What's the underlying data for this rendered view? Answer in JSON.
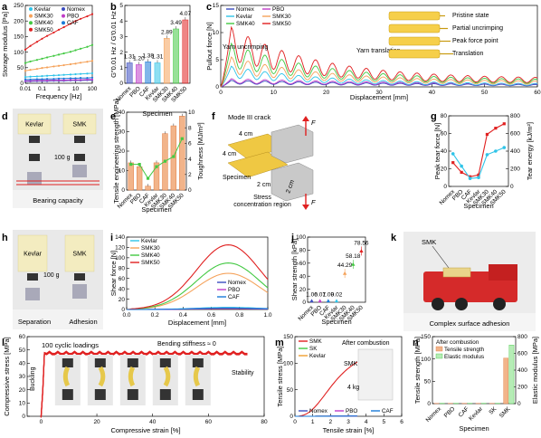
{
  "panel_letters": [
    "a",
    "b",
    "c",
    "d",
    "e",
    "f",
    "g",
    "h",
    "i",
    "j",
    "k",
    "l",
    "m",
    "n"
  ],
  "colors": {
    "kevlar": "#2fc4e8",
    "smk30": "#f5a25a",
    "smk40": "#43c943",
    "smk50": "#e02020",
    "nomex": "#3b4cc0",
    "pbo": "#c03cc8",
    "caf": "#1a7ad8",
    "sk": "#f0a030",
    "bar_orange": "#f2b48a",
    "bar_orange_dark": "#e07a40"
  },
  "chart_data": [
    {
      "id": "a",
      "type": "line",
      "xlabel": "Frequency [Hz]",
      "ylabel": "Storage modulus [Pa]",
      "x_scale": "log",
      "xlim": [
        0.01,
        100
      ],
      "ylim": [
        0,
        250
      ],
      "xticks": [
        "0.01",
        "0.1",
        "1",
        "10",
        "100"
      ],
      "yticks": [
        "0",
        "50",
        "100",
        "150",
        "200",
        "250"
      ],
      "x": [
        0.01,
        0.02,
        0.05,
        0.1,
        0.2,
        0.5,
        1,
        2,
        5,
        10,
        20,
        50,
        100
      ],
      "series": [
        {
          "name": "Kevlar",
          "color": "#2fc4e8",
          "values": [
            20,
            21,
            22,
            23,
            24,
            25,
            26,
            27,
            28,
            29,
            30,
            31,
            32
          ]
        },
        {
          "name": "Nomex",
          "color": "#3b4cc0",
          "values": [
            6,
            6,
            7,
            7,
            7,
            8,
            8,
            8,
            9,
            9,
            9,
            10,
            10
          ]
        },
        {
          "name": "SMK30",
          "color": "#f5a25a",
          "values": [
            40,
            43,
            46,
            49,
            51,
            54,
            56,
            58,
            61,
            63,
            66,
            69,
            72
          ]
        },
        {
          "name": "PBO",
          "color": "#c03cc8",
          "values": [
            8,
            8,
            9,
            9,
            9,
            10,
            10,
            10,
            11,
            11,
            11,
            12,
            12
          ]
        },
        {
          "name": "SMK40",
          "color": "#43c943",
          "values": [
            65,
            70,
            75,
            79,
            83,
            88,
            92,
            96,
            101,
            106,
            111,
            117,
            123
          ]
        },
        {
          "name": "CAF",
          "color": "#1a7ad8",
          "values": [
            12,
            12,
            13,
            13,
            14,
            14,
            15,
            15,
            16,
            16,
            17,
            17,
            18
          ]
        },
        {
          "name": "SMK50",
          "color": "#e02020",
          "values": [
            108,
            120,
            133,
            143,
            152,
            163,
            172,
            180,
            191,
            200,
            207,
            215,
            222
          ]
        }
      ]
    },
    {
      "id": "b",
      "type": "bar",
      "xlabel": "Specimen",
      "ylabel": "G″0.01 Hz / G′0.01 Hz",
      "ylim": [
        0,
        5
      ],
      "yticks": [
        "0",
        "1",
        "2",
        "3",
        "4",
        "5"
      ],
      "categories": [
        "Nomex",
        "PBO",
        "CAF",
        "Kevlar",
        "SMK30",
        "SMK40",
        "SMK50"
      ],
      "values": [
        1.31,
        1.2,
        1.38,
        1.31,
        2.89,
        3.49,
        4.07
      ],
      "value_labels": [
        "1.31",
        "1.20",
        "1.38",
        "1.31",
        "2.89",
        "3.49",
        "4.07"
      ],
      "label_colors": [
        "#3b4cc0",
        "#c03cc8",
        "#1a7ad8",
        "#2fc4e8",
        "#f5a25a",
        "#43c943",
        "#e02020"
      ]
    },
    {
      "id": "c",
      "type": "line",
      "xlabel": "Displacement [mm]",
      "ylabel": "Pullout force [N]",
      "xlim": [
        0,
        60
      ],
      "ylim": [
        0,
        15
      ],
      "xticks": [
        "0",
        "10",
        "20",
        "30",
        "40",
        "50",
        "60"
      ],
      "yticks": [
        "0",
        "5",
        "10",
        "15"
      ],
      "annotations": [
        "Yarn uncrimping",
        "Yarn translation"
      ],
      "inset_labels": [
        "Pristine state",
        "Partial uncrimping",
        "Peak force point",
        "Translation"
      ],
      "series": [
        {
          "name": "Nomex",
          "color": "#3b4cc0",
          "peak": 1.2,
          "tail": 0.2,
          "decay": 40
        },
        {
          "name": "PBO",
          "color": "#c03cc8",
          "peak": 1.5,
          "tail": 0.3,
          "decay": 40
        },
        {
          "name": "Kevlar",
          "color": "#2fc4e8",
          "peak": 3.8,
          "tail": 0.5,
          "decay": 18
        },
        {
          "name": "SMK30",
          "color": "#f5a25a",
          "peak": 5.5,
          "tail": 0.9,
          "decay": 18
        },
        {
          "name": "SMK40",
          "color": "#43c943",
          "peak": 8.0,
          "tail": 1.2,
          "decay": 17
        },
        {
          "name": "SMK50",
          "color": "#e02020",
          "peak": 11.0,
          "tail": 1.5,
          "decay": 16
        }
      ]
    },
    {
      "id": "e",
      "type": "bar",
      "xlabel": "Specimen",
      "ylabel": "Tensile engineering strength [MPa]",
      "y2label": "Toughness [MJ/m³]",
      "ylim": [
        0,
        40
      ],
      "y2lim": [
        0,
        10
      ],
      "yticks": [
        "0",
        "10",
        "20",
        "30",
        "40"
      ],
      "y2ticks": [
        "0",
        "2",
        "4",
        "6",
        "8",
        "10"
      ],
      "categories": [
        "Nomex",
        "PBO",
        "CAF",
        "Kevlar",
        "SMK30",
        "SMK40",
        "SMK50"
      ],
      "values": [
        14,
        12,
        2,
        14,
        29,
        33,
        38
      ],
      "line_values": [
        3.3,
        3.3,
        1.5,
        3.0,
        3.7,
        4.3,
        6.6
      ]
    },
    {
      "id": "g",
      "type": "line",
      "xlabel": "Specimen",
      "ylabel": "Peak tear force [N]",
      "y2label": "Tear energy [kJ/m²]",
      "ylim": [
        0,
        80
      ],
      "y2lim": [
        0,
        800
      ],
      "yticks": [
        "0",
        "20",
        "40",
        "60",
        "80"
      ],
      "y2ticks": [
        "0",
        "200",
        "400",
        "600",
        "800"
      ],
      "categories": [
        "Nomex",
        "PBO",
        "CAF",
        "Kevlar",
        "SMK30",
        "SMK40",
        "SMK50"
      ],
      "series": [
        {
          "name": "Peak tear force",
          "color": "#e02020",
          "values": [
            27,
            16,
            11,
            13,
            59,
            66,
            71
          ]
        },
        {
          "name": "Tear energy",
          "color": "#2fc4e8",
          "values": [
            370,
            230,
            90,
            100,
            360,
            400,
            440
          ]
        }
      ]
    },
    {
      "id": "i",
      "type": "line",
      "xlabel": "Displacement [mm]",
      "ylabel": "Shear force [N]",
      "xlim": [
        0,
        1.0
      ],
      "ylim": [
        0,
        140
      ],
      "xticks": [
        "0.0",
        "0.2",
        "0.4",
        "0.6",
        "0.8",
        "1.0"
      ],
      "yticks": [
        "0",
        "20",
        "40",
        "60",
        "80",
        "100",
        "120",
        "140"
      ],
      "series": [
        {
          "name": "Kevlar",
          "color": "#2fc4e8",
          "peak": 4
        },
        {
          "name": "SMK30",
          "color": "#f5a25a",
          "peak": 70
        },
        {
          "name": "SMK40",
          "color": "#43c943",
          "peak": 90
        },
        {
          "name": "SMK50",
          "color": "#e02020",
          "peak": 125
        },
        {
          "name": "Nomex",
          "color": "#3b4cc0",
          "peak": 2
        },
        {
          "name": "PBO",
          "color": "#c03cc8",
          "peak": 2
        },
        {
          "name": "CAF",
          "color": "#1a7ad8",
          "peak": 3
        }
      ]
    },
    {
      "id": "j",
      "type": "scatter",
      "xlabel": "Specimen",
      "ylabel": "Shear strength [kPa]",
      "ylim": [
        0,
        100
      ],
      "yticks": [
        "0",
        "20",
        "40",
        "60",
        "80",
        "100"
      ],
      "categories": [
        "Nomex",
        "PBO",
        "CAF",
        "Kevlar",
        "SMK30",
        "SMK40",
        "SMK50"
      ],
      "values": [
        1.06,
        0.07,
        1.09,
        0.02,
        44.29,
        58.18,
        78.56
      ],
      "value_labels": [
        "1.06",
        "0.07",
        "1.09",
        "0.02",
        "44.29",
        "58.18",
        "78.56"
      ],
      "colors": [
        "#3b4cc0",
        "#c03cc8",
        "#1a7ad8",
        "#2fc4e8",
        "#f5a25a",
        "#43c943",
        "#e02020"
      ]
    },
    {
      "id": "l",
      "type": "line",
      "xlabel": "Compressive strain [%]",
      "ylabel": "Compressive stress [MPa]",
      "xlim": [
        -5,
        80
      ],
      "ylim": [
        0,
        60
      ],
      "xticks": [
        "0",
        "20",
        "40",
        "60",
        "80"
      ],
      "yticks": [
        "0",
        "10",
        "20",
        "30",
        "40",
        "50",
        "60"
      ],
      "annotations": [
        "100 cyclic loadings",
        "Bending stiffness ≈ 0",
        "Buckling",
        "Stability"
      ],
      "series": [
        {
          "name": "SMK",
          "color": "#e02020",
          "plateau": 48
        }
      ]
    },
    {
      "id": "m",
      "type": "line",
      "xlabel": "Tensile strain [%]",
      "ylabel": "Tensile stress [MPa]",
      "xlim": [
        0,
        6
      ],
      "ylim": [
        0,
        150
      ],
      "xticks": [
        "0",
        "1",
        "2",
        "3",
        "4",
        "5",
        "6"
      ],
      "yticks": [
        "0",
        "50",
        "100",
        "150"
      ],
      "annotations": [
        "After combustion",
        "SMK",
        "4 kg"
      ],
      "series": [
        {
          "name": "SMK",
          "color": "#e02020",
          "end_x": 3.6,
          "end_y": 104
        },
        {
          "name": "SK",
          "color": "#43c943",
          "end_x": 3.6,
          "end_y": 0.5
        },
        {
          "name": "Kevlar",
          "color": "#f0a030",
          "end_x": 3.6,
          "end_y": 0.5
        },
        {
          "name": "Nomex",
          "color": "#3b4cc0",
          "end_x": 3.6,
          "end_y": 0.5
        },
        {
          "name": "PBO",
          "color": "#c03cc8",
          "end_x": 3.6,
          "end_y": 0.5
        },
        {
          "name": "CAF",
          "color": "#1a7ad8",
          "end_x": 3.6,
          "end_y": 0.5
        }
      ]
    },
    {
      "id": "n",
      "type": "bar",
      "title": "After combustion",
      "xlabel": "Specimen",
      "ylabel": "Tensile strength [MPa]",
      "y2label": "Elastic modulus [MPa]",
      "ylim": [
        0,
        150
      ],
      "y2lim": [
        0,
        800
      ],
      "yticks": [
        "0",
        "50",
        "100",
        "150"
      ],
      "y2ticks": [
        "0",
        "200",
        "400",
        "600",
        "800"
      ],
      "categories": [
        "Nomex",
        "PBO",
        "CAF",
        "Kevlar",
        "SK",
        "SMK"
      ],
      "series": [
        {
          "name": "Tensile strength",
          "color": "#f2b48a",
          "values": [
            0.5,
            0.5,
            0.5,
            0.5,
            0.5,
            102
          ]
        },
        {
          "name": "Elastic modulus",
          "color": "#b6ecb6",
          "values": [
            3,
            3,
            3,
            3,
            3,
            700
          ]
        }
      ]
    }
  ],
  "photos": {
    "d": {
      "labels": [
        "Kevlar",
        "SMK",
        "100 g",
        "Bearing capacity"
      ]
    },
    "f": {
      "title": "Mode III crack",
      "dims": [
        "4 cm",
        "4 cm",
        "2 cm",
        "2 cm"
      ],
      "specimen": "Specimen",
      "stress": [
        "Stress",
        "concentration region"
      ],
      "force": "F"
    },
    "h": {
      "labels": [
        "Kevlar",
        "SMK",
        "100 g",
        "Separation",
        "Adhesion"
      ]
    },
    "k": {
      "labels": [
        "SMK",
        "Complex surface adhesion"
      ]
    }
  }
}
